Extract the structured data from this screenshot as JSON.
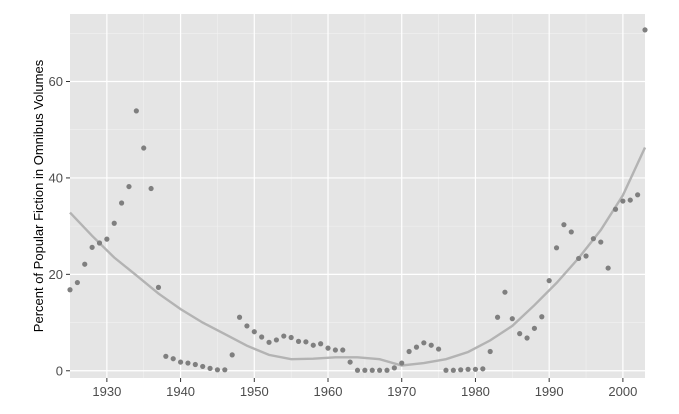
{
  "chart_data": {
    "type": "scatter",
    "ylabel": "Percent of Popular Fiction in Omnibus Volumes",
    "xlabel": "",
    "xlim": [
      1925,
      2003
    ],
    "ylim": [
      -1.5,
      74
    ],
    "xticks": [
      1930,
      1940,
      1950,
      1960,
      1970,
      1980,
      1990,
      2000
    ],
    "yticks": [
      0,
      20,
      40,
      60
    ],
    "grid": true,
    "colors": {
      "panel": "#e5e5e5",
      "grid_major": "#ffffff",
      "points": "#7f7f7f",
      "smooth": "#b3b3b3"
    },
    "points": [
      [
        1925,
        16.8
      ],
      [
        1926,
        18.3
      ],
      [
        1927,
        22.1
      ],
      [
        1928,
        25.6
      ],
      [
        1929,
        26.5
      ],
      [
        1930,
        27.3
      ],
      [
        1931,
        30.6
      ],
      [
        1932,
        34.8
      ],
      [
        1933,
        38.2
      ],
      [
        1934,
        53.9
      ],
      [
        1935,
        46.2
      ],
      [
        1936,
        37.8
      ],
      [
        1937,
        17.3
      ],
      [
        1938,
        3.0
      ],
      [
        1939,
        2.5
      ],
      [
        1940,
        1.8
      ],
      [
        1941,
        1.6
      ],
      [
        1942,
        1.3
      ],
      [
        1943,
        0.9
      ],
      [
        1944,
        0.5
      ],
      [
        1945,
        0.2
      ],
      [
        1946,
        0.2
      ],
      [
        1947,
        3.3
      ],
      [
        1948,
        11.1
      ],
      [
        1949,
        9.3
      ],
      [
        1950,
        8.1
      ],
      [
        1951,
        7.0
      ],
      [
        1952,
        5.9
      ],
      [
        1953,
        6.4
      ],
      [
        1954,
        7.2
      ],
      [
        1955,
        6.9
      ],
      [
        1956,
        6.1
      ],
      [
        1957,
        6.0
      ],
      [
        1958,
        5.3
      ],
      [
        1959,
        5.6
      ],
      [
        1960,
        4.7
      ],
      [
        1961,
        4.3
      ],
      [
        1962,
        4.3
      ],
      [
        1963,
        1.8
      ],
      [
        1964,
        0.1
      ],
      [
        1965,
        0.1
      ],
      [
        1966,
        0.1
      ],
      [
        1967,
        0.1
      ],
      [
        1968,
        0.1
      ],
      [
        1969,
        0.6
      ],
      [
        1970,
        1.6
      ],
      [
        1971,
        4.0
      ],
      [
        1972,
        4.9
      ],
      [
        1973,
        5.8
      ],
      [
        1974,
        5.3
      ],
      [
        1975,
        4.5
      ],
      [
        1976,
        0.1
      ],
      [
        1977,
        0.1
      ],
      [
        1978,
        0.2
      ],
      [
        1979,
        0.3
      ],
      [
        1980,
        0.3
      ],
      [
        1981,
        0.4
      ],
      [
        1982,
        4.0
      ],
      [
        1983,
        11.1
      ],
      [
        1984,
        16.3
      ],
      [
        1985,
        10.8
      ],
      [
        1986,
        7.7
      ],
      [
        1987,
        6.8
      ],
      [
        1988,
        8.8
      ],
      [
        1989,
        11.2
      ],
      [
        1990,
        18.7
      ],
      [
        1991,
        25.5
      ],
      [
        1992,
        30.3
      ],
      [
        1993,
        28.8
      ],
      [
        1994,
        23.3
      ],
      [
        1995,
        23.8
      ],
      [
        1996,
        27.4
      ],
      [
        1997,
        26.7
      ],
      [
        1998,
        21.3
      ],
      [
        1999,
        33.5
      ],
      [
        2000,
        35.2
      ],
      [
        2001,
        35.4
      ],
      [
        2002,
        36.5
      ],
      [
        2003,
        70.7
      ]
    ],
    "smooth": [
      [
        1925,
        32.8
      ],
      [
        1928,
        28.0
      ],
      [
        1931,
        23.5
      ],
      [
        1934,
        19.8
      ],
      [
        1937,
        16.0
      ],
      [
        1940,
        12.8
      ],
      [
        1943,
        10.0
      ],
      [
        1946,
        7.6
      ],
      [
        1949,
        5.2
      ],
      [
        1952,
        3.3
      ],
      [
        1955,
        2.4
      ],
      [
        1958,
        2.5
      ],
      [
        1961,
        2.8
      ],
      [
        1964,
        2.8
      ],
      [
        1967,
        2.4
      ],
      [
        1970,
        1.1
      ],
      [
        1973,
        1.6
      ],
      [
        1976,
        2.4
      ],
      [
        1979,
        3.9
      ],
      [
        1982,
        6.3
      ],
      [
        1985,
        9.3
      ],
      [
        1988,
        13.6
      ],
      [
        1991,
        18.2
      ],
      [
        1994,
        23.4
      ],
      [
        1997,
        29.2
      ],
      [
        2000,
        36.4
      ],
      [
        2003,
        46.3
      ]
    ]
  }
}
